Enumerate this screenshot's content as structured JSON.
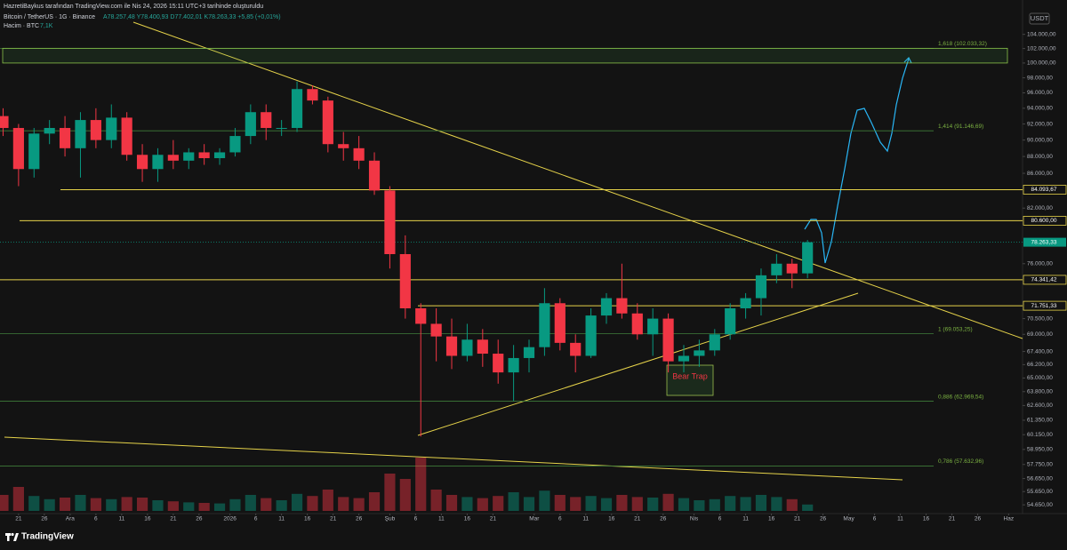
{
  "header": {
    "author_line": "HazretiBaykus tarafından TradingView.com ile Nis 24, 2026 15:11 UTC+3 tarihinde oluşturuldu",
    "symbol_line": "Bitcoin / TetherUS · 1G · Binance",
    "ohlc": "A78.257,48 Y78.400,93 D77.402,01 K78.263,33 +5,85 (+0,01%)",
    "volume_line": "Hacim · BTC",
    "volume_value": "7,1K"
  },
  "currency": "USDT",
  "brand": "TradingView",
  "chart_data": {
    "type": "candlestick",
    "log_scale": true,
    "grid": false,
    "up_color": "#089981",
    "down_color": "#f23645",
    "ylim": [
      54000,
      109000
    ],
    "xlim": [
      -3.6,
      194.7
    ],
    "yticks": [
      {
        "value": 104000,
        "label": "104.000,00"
      },
      {
        "value": 102000,
        "label": "102.000,00"
      },
      {
        "value": 100000,
        "label": "100.000,00"
      },
      {
        "value": 98000,
        "label": "98.000,00"
      },
      {
        "value": 96000,
        "label": "96.000,00"
      },
      {
        "value": 94000,
        "label": "94.000,00"
      },
      {
        "value": 92000,
        "label": "92.000,00"
      },
      {
        "value": 90000,
        "label": "90.000,00"
      },
      {
        "value": 88000,
        "label": "88.000,00"
      },
      {
        "value": 86000,
        "label": "86.000,00"
      },
      {
        "value": 82000,
        "label": "82.000,00"
      },
      {
        "value": 76000,
        "label": "76.000,00"
      },
      {
        "value": 70500,
        "label": "70.500,00"
      },
      {
        "value": 69000,
        "label": "69.000,00"
      },
      {
        "value": 67400,
        "label": "67.400,00"
      },
      {
        "value": 66200,
        "label": "66.200,00"
      },
      {
        "value": 65000,
        "label": "65.000,00"
      },
      {
        "value": 63800,
        "label": "63.800,00"
      },
      {
        "value": 62600,
        "label": "62.600,00"
      },
      {
        "value": 61350,
        "label": "61.350,00"
      },
      {
        "value": 60150,
        "label": "60.150,00"
      },
      {
        "value": 58950,
        "label": "58.950,00"
      },
      {
        "value": 57750,
        "label": "57.750,00"
      },
      {
        "value": 56650,
        "label": "56.650,00"
      },
      {
        "value": 55650,
        "label": "55.650,00"
      },
      {
        "value": 54650,
        "label": "54.650,00"
      }
    ],
    "xticks": [
      {
        "value": 0,
        "label": "21"
      },
      {
        "value": 5,
        "label": "26"
      },
      {
        "value": 10,
        "label": "Ara"
      },
      {
        "value": 15,
        "label": "6"
      },
      {
        "value": 20,
        "label": "11"
      },
      {
        "value": 25,
        "label": "16"
      },
      {
        "value": 30,
        "label": "21"
      },
      {
        "value": 35,
        "label": "26"
      },
      {
        "value": 41,
        "label": "2026"
      },
      {
        "value": 46,
        "label": "6"
      },
      {
        "value": 51,
        "label": "11"
      },
      {
        "value": 56,
        "label": "16"
      },
      {
        "value": 61,
        "label": "21"
      },
      {
        "value": 66,
        "label": "26"
      },
      {
        "value": 72,
        "label": "Şub"
      },
      {
        "value": 77,
        "label": "6"
      },
      {
        "value": 82,
        "label": "11"
      },
      {
        "value": 87,
        "label": "16"
      },
      {
        "value": 92,
        "label": "21"
      },
      {
        "value": 100,
        "label": "Mar"
      },
      {
        "value": 105,
        "label": "6"
      },
      {
        "value": 110,
        "label": "11"
      },
      {
        "value": 115,
        "label": "16"
      },
      {
        "value": 120,
        "label": "21"
      },
      {
        "value": 125,
        "label": "26"
      },
      {
        "value": 131,
        "label": "Nis"
      },
      {
        "value": 136,
        "label": "6"
      },
      {
        "value": 141,
        "label": "11"
      },
      {
        "value": 146,
        "label": "16"
      },
      {
        "value": 151,
        "label": "21"
      },
      {
        "value": 156,
        "label": "26"
      },
      {
        "value": 161,
        "label": "May"
      },
      {
        "value": 166,
        "label": "6"
      },
      {
        "value": 171,
        "label": "11"
      },
      {
        "value": 176,
        "label": "16"
      },
      {
        "value": 181,
        "label": "21"
      },
      {
        "value": 186,
        "label": "26"
      },
      {
        "value": 192,
        "label": "Haz"
      }
    ],
    "x": [
      -3,
      0,
      3,
      6,
      9,
      12,
      15,
      18,
      21,
      24,
      27,
      30,
      33,
      36,
      39,
      42,
      45,
      48,
      51,
      54,
      57,
      60,
      63,
      66,
      69,
      72,
      75,
      78,
      81,
      84,
      87,
      90,
      93,
      96,
      99,
      102,
      105,
      108,
      111,
      114,
      117,
      120,
      123,
      126,
      129,
      132,
      135,
      138,
      141,
      144,
      147,
      150,
      153
    ],
    "open": [
      93000,
      91500,
      86500,
      90800,
      91500,
      89000,
      92500,
      90000,
      92800,
      88200,
      86500,
      88200,
      87500,
      88500,
      87800,
      88500,
      90500,
      93500,
      91500,
      91500,
      96500,
      95000,
      89500,
      89000,
      87500,
      84000,
      77000,
      71500,
      70000,
      68800,
      67000,
      68500,
      67200,
      65500,
      66800,
      67800,
      72000,
      68200,
      67000,
      70800,
      72500,
      71000,
      69000,
      70500,
      66500,
      67000,
      67500,
      69000,
      71500,
      72500,
      74800,
      76000,
      75000
    ],
    "high": [
      94000,
      92000,
      91500,
      92500,
      93000,
      93500,
      94000,
      94500,
      93500,
      89500,
      89000,
      90000,
      89000,
      89500,
      89000,
      91500,
      94500,
      94500,
      92500,
      97500,
      97000,
      95500,
      91000,
      90500,
      88500,
      84500,
      79000,
      72000,
      71500,
      70500,
      70000,
      69500,
      68500,
      68000,
      68500,
      73500,
      72500,
      69000,
      71500,
      73000,
      76000,
      72000,
      71500,
      71000,
      68000,
      68500,
      69500,
      72000,
      73000,
      75500,
      77000,
      76500,
      78500
    ],
    "low": [
      90500,
      84500,
      85500,
      89500,
      88000,
      85500,
      89000,
      89000,
      87500,
      85000,
      85000,
      86500,
      86500,
      87000,
      87000,
      88000,
      89500,
      90000,
      90500,
      91000,
      94500,
      88500,
      87500,
      86500,
      83500,
      75500,
      70500,
      60000,
      66500,
      65800,
      66500,
      66000,
      64500,
      63000,
      65500,
      67000,
      67500,
      65500,
      66800,
      70000,
      70500,
      68500,
      67000,
      65500,
      65500,
      66000,
      67000,
      68500,
      70500,
      70800,
      74000,
      73500,
      74500
    ],
    "close": [
      91500,
      86500,
      90800,
      91500,
      89000,
      92500,
      90000,
      92800,
      88200,
      86500,
      88200,
      87500,
      88500,
      87800,
      88500,
      90500,
      93500,
      91500,
      91500,
      96500,
      95000,
      89500,
      89000,
      87500,
      84000,
      77000,
      71500,
      70000,
      68800,
      67000,
      68500,
      67200,
      65500,
      66800,
      67800,
      72000,
      68200,
      67000,
      70800,
      72500,
      71000,
      69000,
      70500,
      66500,
      67000,
      67500,
      69000,
      71500,
      72500,
      74800,
      76000,
      75000,
      78263.33
    ],
    "volume": [
      30,
      45,
      28,
      22,
      25,
      30,
      24,
      22,
      26,
      25,
      20,
      18,
      16,
      15,
      14,
      22,
      30,
      24,
      20,
      32,
      28,
      40,
      26,
      24,
      35,
      70,
      60,
      100,
      40,
      30,
      26,
      24,
      28,
      35,
      26,
      38,
      30,
      26,
      28,
      24,
      30,
      26,
      25,
      32,
      24,
      20,
      22,
      28,
      26,
      30,
      26,
      22,
      12
    ],
    "levels": [
      {
        "value": 84093.67,
        "label": "84.093,67"
      },
      {
        "value": 80600,
        "label": "80.600,00"
      },
      {
        "value": 74341.42,
        "label": "74.341,42"
      },
      {
        "value": 71751.33,
        "label": "71.751,33"
      }
    ],
    "last_price": {
      "value": 78263.33,
      "label": "78.263,33"
    },
    "fib_levels": [
      {
        "value": 102033.32,
        "label": "1,618 (102.033,32)"
      },
      {
        "value": 91146.69,
        "label": "1,414 (91.146,69)"
      },
      {
        "value": 69053.25,
        "label": "1 (69.053,25)"
      },
      {
        "value": 62969.54,
        "label": "0,886 (62.969,54)"
      },
      {
        "value": 57632.96,
        "label": "0,786 (57.632,96)"
      }
    ],
    "annotation": "Bear Trap"
  }
}
